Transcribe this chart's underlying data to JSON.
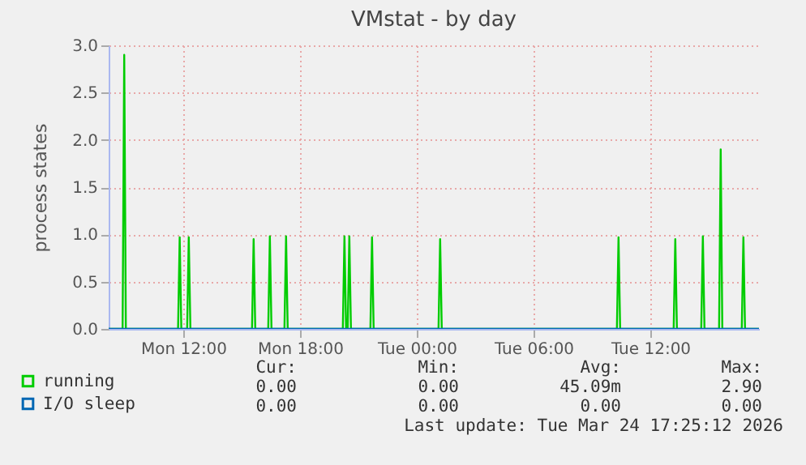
{
  "chart_data": {
    "type": "line",
    "title": "VMstat - by day",
    "ylabel": "process states",
    "xlim": [
      "2026-03-23T08:10",
      "2026-03-24T17:35"
    ],
    "xticks": [
      {
        "value": "2026-03-23T12:00",
        "label": "Mon 12:00"
      },
      {
        "value": "2026-03-23T18:00",
        "label": "Mon 18:00"
      },
      {
        "value": "2026-03-24T00:00",
        "label": "Tue 00:00"
      },
      {
        "value": "2026-03-24T06:00",
        "label": "Tue 06:00"
      },
      {
        "value": "2026-03-24T12:00",
        "label": "Tue 12:00"
      }
    ],
    "ylim": [
      0,
      3
    ],
    "yticks": [
      {
        "value": 0,
        "label": "0.0"
      },
      {
        "value": 0.5,
        "label": "0.5"
      },
      {
        "value": 1,
        "label": "1.0"
      },
      {
        "value": 1.5,
        "label": "1.5"
      },
      {
        "value": 2,
        "label": "2.0"
      },
      {
        "value": 2.5,
        "label": "2.5"
      },
      {
        "value": 3,
        "label": "3.0"
      }
    ],
    "series": [
      {
        "name": "running",
        "color": "#00cc00",
        "x": [
          "2026-03-23T08:10",
          "2026-03-23T08:53",
          "2026-03-23T08:58",
          "2026-03-23T09:03",
          "2026-03-23T11:44",
          "2026-03-23T11:49",
          "2026-03-23T11:54",
          "2026-03-23T12:12",
          "2026-03-23T12:17",
          "2026-03-23T12:22",
          "2026-03-23T15:32",
          "2026-03-23T15:37",
          "2026-03-23T15:42",
          "2026-03-23T16:22",
          "2026-03-23T16:27",
          "2026-03-23T16:32",
          "2026-03-23T17:12",
          "2026-03-23T17:17",
          "2026-03-23T17:22",
          "2026-03-23T20:12",
          "2026-03-23T20:17",
          "2026-03-23T20:22",
          "2026-03-23T20:27",
          "2026-03-23T20:32",
          "2026-03-23T20:37",
          "2026-03-23T21:37",
          "2026-03-23T21:42",
          "2026-03-23T21:47",
          "2026-03-24T01:07",
          "2026-03-24T01:12",
          "2026-03-24T01:17",
          "2026-03-24T10:17",
          "2026-03-24T10:22",
          "2026-03-24T10:27",
          "2026-03-24T13:12",
          "2026-03-24T13:17",
          "2026-03-24T13:22",
          "2026-03-24T14:37",
          "2026-03-24T14:42",
          "2026-03-24T14:47",
          "2026-03-24T15:32",
          "2026-03-24T15:37",
          "2026-03-24T15:42",
          "2026-03-24T16:42",
          "2026-03-24T16:47",
          "2026-03-24T16:52",
          "2026-03-24T17:35"
        ],
        "values": [
          0,
          0,
          2.9,
          0,
          0,
          0.97,
          0,
          0,
          0.97,
          0,
          0,
          0.95,
          0,
          0,
          0.98,
          0,
          0,
          0.98,
          0,
          0,
          0.98,
          0,
          0,
          0.98,
          0,
          0,
          0.97,
          0,
          0,
          0.95,
          0,
          0,
          0.97,
          0,
          0,
          0.95,
          0,
          0,
          0.98,
          0,
          0,
          1.9,
          0,
          0,
          0.97,
          0,
          0
        ]
      },
      {
        "name": "I/O sleep",
        "color": "#0066b3",
        "x": [
          "2026-03-23T08:10",
          "2026-03-24T17:35"
        ],
        "values": [
          0,
          0
        ]
      }
    ],
    "grid": true,
    "legend": "bottom",
    "line_style": "solid",
    "annotations": [
      "Cur:",
      "Min:",
      "Avg:",
      "Max:",
      "0.00",
      "0.00",
      "45.09m",
      "2.90",
      "0.00",
      "0.00",
      "0.00",
      "0.00",
      "Last update: Tue Mar 24 17:25:12 2026"
    ]
  }
}
